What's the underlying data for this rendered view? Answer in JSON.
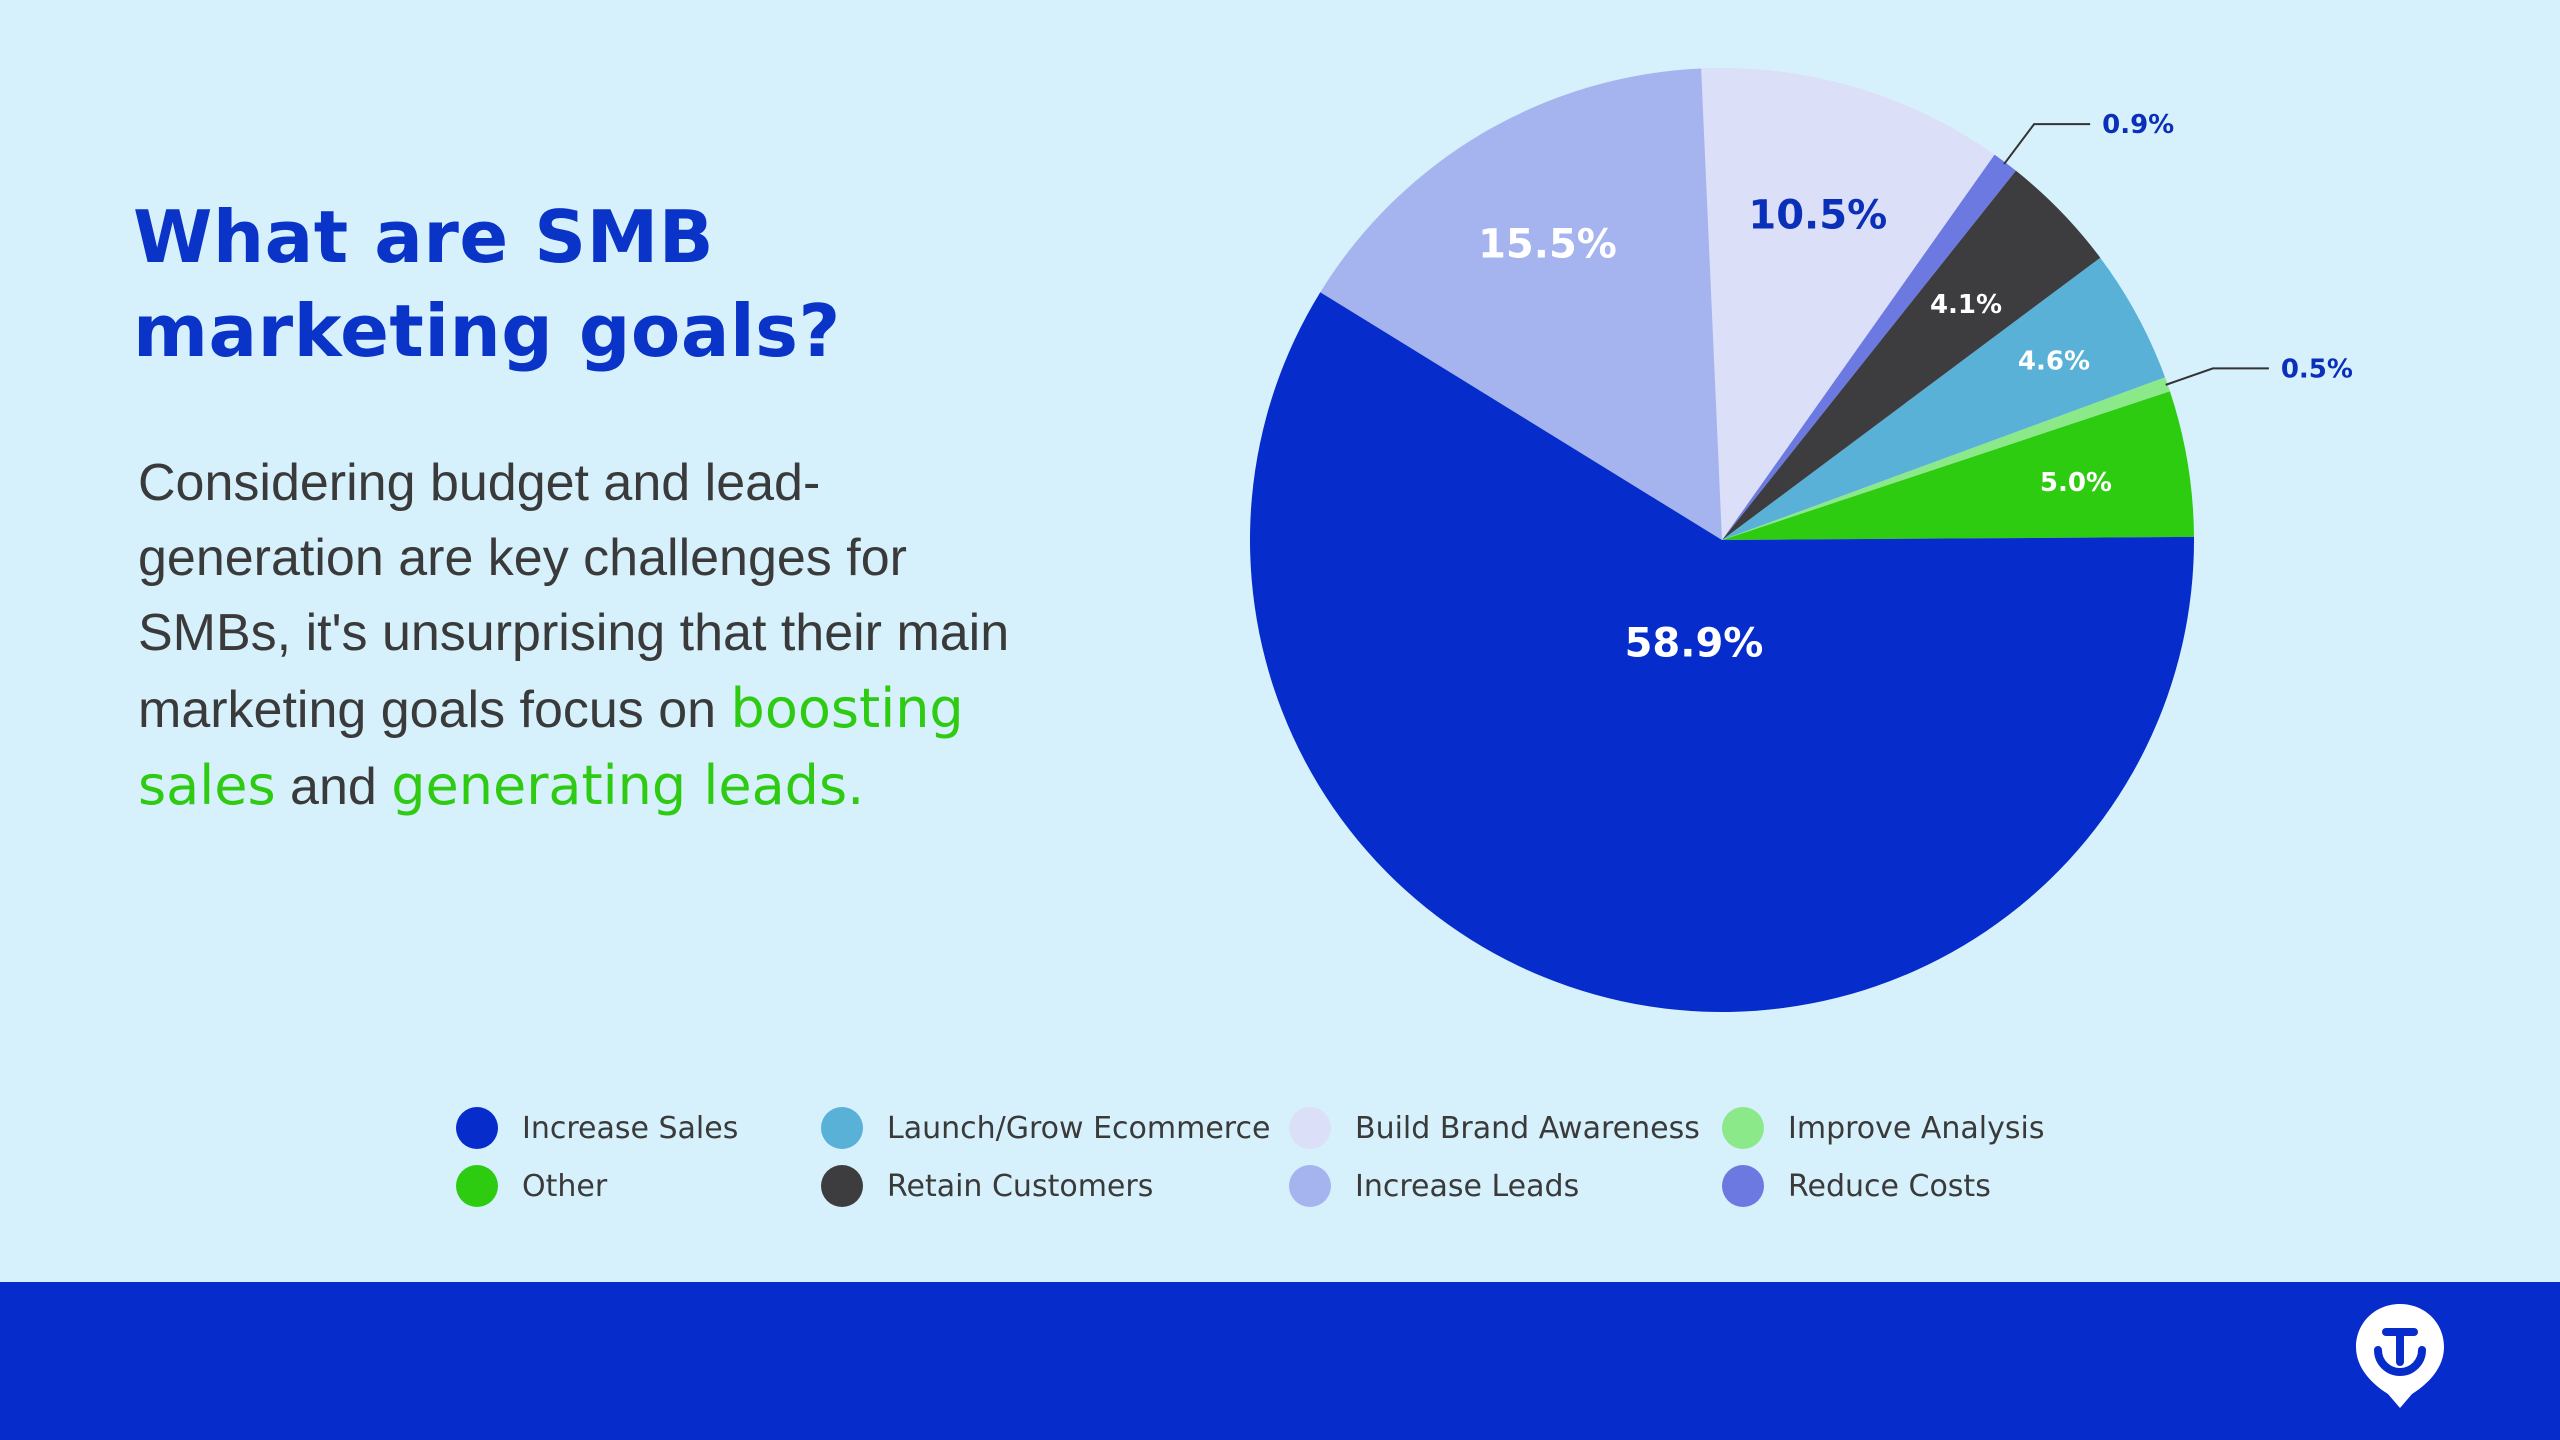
{
  "heading": {
    "line1": "What are SMB",
    "line2": "marketing goals?"
  },
  "body": {
    "part1": "Considering budget and lead-generation are key challenges for SMBs, it's unsurprising that their main marketing goals focus on",
    "highlight1": "boosting sales",
    "part2": "and",
    "highlight2": "generating leads."
  },
  "colors": {
    "title": "#0a33c8",
    "highlight": "#2ecb12",
    "footer": "#062ccb",
    "background": "#d6f1fc"
  },
  "logo": {
    "icon": "brand-pin-logo-icon"
  },
  "chart_data": {
    "type": "pie",
    "title": "",
    "slices": [
      {
        "name": "Other",
        "value": 5.0,
        "label": "5.0%",
        "color": "#2ecc10"
      },
      {
        "name": "Improve Analysis",
        "value": 0.5,
        "label": "0.5%",
        "color": "#8be98a"
      },
      {
        "name": "Launch/Grow Ecommerce",
        "value": 4.6,
        "label": "4.6%",
        "color": "#5ab1d8"
      },
      {
        "name": "Retain Customers",
        "value": 4.1,
        "label": "4.1%",
        "color": "#3d3d3f"
      },
      {
        "name": "Reduce Costs",
        "value": 0.9,
        "label": "0.9%",
        "color": "#6b79e1"
      },
      {
        "name": "Build Brand Awareness",
        "value": 10.5,
        "label": "10.5%",
        "color": "#dbdff8"
      },
      {
        "name": "Increase Leads",
        "value": 15.5,
        "label": "15.5%",
        "color": "#a5b4ee"
      },
      {
        "name": "Increase Sales",
        "value": 58.9,
        "label": "58.9%",
        "color": "#062ccb"
      }
    ],
    "legend": {
      "placement": "bottom",
      "rows": [
        [
          "Increase Sales",
          "Launch/Grow Ecommerce",
          "Build Brand Awareness",
          "Improve Analysis"
        ],
        [
          "Other",
          "Retain Customers",
          "Increase Leads",
          "Reduce Costs"
        ]
      ]
    }
  }
}
